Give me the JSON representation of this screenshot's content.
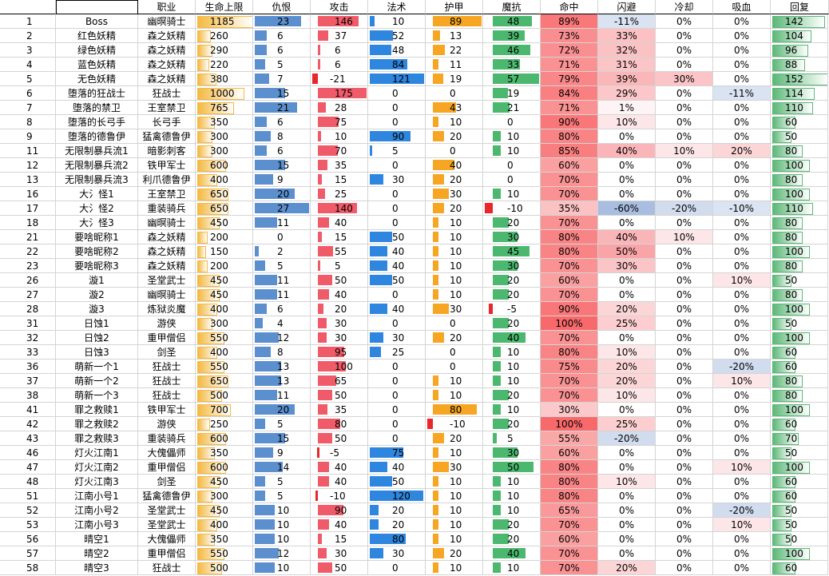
{
  "headers": {
    "job": "职业",
    "hp": "生命上限",
    "threat": "仇恨",
    "atk": "攻击",
    "mag": "法术",
    "armor": "护甲",
    "res": "魔抗",
    "hit": "命中",
    "dodge": "闪避",
    "cd": "冷却",
    "steal": "吸血",
    "regen": "回复"
  },
  "colors": {
    "hp": "#f4b942",
    "threat": "#5b8fce",
    "atk": "#f05b6a",
    "mag": "#2e86de",
    "armor": "#f6a623",
    "res": "#4cb86f",
    "regen": "#5cb878",
    "hit_hi": "#f8696b",
    "hit_lo": "#fde9ea",
    "pos_hi": "#f9a5a8",
    "neg": "#a8bde0"
  },
  "rows": [
    {
      "id": "1",
      "name": "Boss",
      "job": "幽暝骑士",
      "hp": "1185",
      "threat": "23",
      "atk": "146",
      "mag": "10",
      "armor": "89",
      "res": "48",
      "hit": "89%",
      "dodge": "-11%",
      "cd": "0%",
      "steal": "0%",
      "regen": "142"
    },
    {
      "id": "2",
      "name": "红色妖精",
      "job": "森之妖精",
      "hp": "260",
      "threat": "6",
      "atk": "37",
      "mag": "52",
      "armor": "13",
      "res": "39",
      "hit": "73%",
      "dodge": "33%",
      "cd": "0%",
      "steal": "0%",
      "regen": "104"
    },
    {
      "id": "3",
      "name": "绿色妖精",
      "job": "森之妖精",
      "hp": "290",
      "threat": "6",
      "atk": "6",
      "mag": "48",
      "armor": "22",
      "res": "46",
      "hit": "72%",
      "dodge": "32%",
      "cd": "0%",
      "steal": "0%",
      "regen": "96"
    },
    {
      "id": "4",
      "name": "蓝色妖精",
      "job": "森之妖精",
      "hp": "220",
      "threat": "5",
      "atk": "6",
      "mag": "84",
      "armor": "11",
      "res": "33",
      "hit": "71%",
      "dodge": "31%",
      "cd": "0%",
      "steal": "0%",
      "regen": "88"
    },
    {
      "id": "5",
      "name": "无色妖精",
      "job": "森之妖精",
      "hp": "380",
      "threat": "7",
      "atk": "-21",
      "mag": "121",
      "armor": "19",
      "res": "57",
      "hit": "79%",
      "dodge": "39%",
      "cd": "30%",
      "steal": "0%",
      "regen": "152"
    },
    {
      "id": "6",
      "name": "堕落的狂战士",
      "job": "狂战士",
      "hp": "1000",
      "threat": "15",
      "atk": "175",
      "mag": "0",
      "armor": "0",
      "res": "19",
      "hit": "84%",
      "dodge": "29%",
      "cd": "0%",
      "steal": "-11%",
      "regen": "114"
    },
    {
      "id": "7",
      "name": "堕落的禁卫",
      "job": "王室禁卫",
      "hp": "765",
      "threat": "21",
      "atk": "28",
      "mag": "0",
      "armor": "43",
      "res": "21",
      "hit": "71%",
      "dodge": "1%",
      "cd": "0%",
      "steal": "0%",
      "regen": "110"
    },
    {
      "id": "8",
      "name": "堕落的长弓手",
      "job": "长弓手",
      "hp": "350",
      "threat": "6",
      "atk": "75",
      "mag": "0",
      "armor": "10",
      "res": "0",
      "hit": "90%",
      "dodge": "10%",
      "cd": "0%",
      "steal": "0%",
      "regen": "60"
    },
    {
      "id": "9",
      "name": "堕落的德鲁伊",
      "job": "猛禽德鲁伊",
      "hp": "300",
      "threat": "8",
      "atk": "10",
      "mag": "90",
      "armor": "20",
      "res": "10",
      "hit": "80%",
      "dodge": "0%",
      "cd": "0%",
      "steal": "0%",
      "regen": "50"
    },
    {
      "id": "11",
      "name": "无限制暴兵流1",
      "job": "暗影刺客",
      "hp": "300",
      "threat": "6",
      "atk": "70",
      "mag": "5",
      "armor": "0",
      "res": "10",
      "hit": "85%",
      "dodge": "40%",
      "cd": "10%",
      "steal": "20%",
      "regen": "80"
    },
    {
      "id": "12",
      "name": "无限制暴兵流2",
      "job": "铁甲军士",
      "hp": "600",
      "threat": "15",
      "atk": "35",
      "mag": "0",
      "armor": "40",
      "res": "0",
      "hit": "60%",
      "dodge": "0%",
      "cd": "0%",
      "steal": "0%",
      "regen": "100"
    },
    {
      "id": "13",
      "name": "无限制暴兵流3",
      "job": "利爪德鲁伊",
      "hp": "400",
      "threat": "9",
      "atk": "15",
      "mag": "30",
      "armor": "20",
      "res": "0",
      "hit": "70%",
      "dodge": "0%",
      "cd": "0%",
      "steal": "0%",
      "regen": "80"
    },
    {
      "id": "16",
      "name": "大氵怪1",
      "job": "王室禁卫",
      "hp": "650",
      "threat": "20",
      "atk": "25",
      "mag": "0",
      "armor": "30",
      "res": "10",
      "hit": "70%",
      "dodge": "0%",
      "cd": "0%",
      "steal": "0%",
      "regen": "100"
    },
    {
      "id": "17",
      "name": "大氵怪2",
      "job": "重装骑兵",
      "hp": "650",
      "threat": "27",
      "atk": "140",
      "mag": "0",
      "armor": "20",
      "res": "-10",
      "hit": "35%",
      "dodge": "-60%",
      "cd": "-20%",
      "steal": "-10%",
      "regen": "110"
    },
    {
      "id": "18",
      "name": "大氵怪3",
      "job": "幽暝骑士",
      "hp": "450",
      "threat": "11",
      "atk": "40",
      "mag": "0",
      "armor": "10",
      "res": "20",
      "hit": "70%",
      "dodge": "0%",
      "cd": "0%",
      "steal": "0%",
      "regen": "80"
    },
    {
      "id": "21",
      "name": "要啥昵称1",
      "job": "森之妖精",
      "hp": "200",
      "threat": "0",
      "atk": "15",
      "mag": "50",
      "armor": "10",
      "res": "30",
      "hit": "80%",
      "dodge": "40%",
      "cd": "10%",
      "steal": "0%",
      "regen": "80"
    },
    {
      "id": "22",
      "name": "要啥昵称2",
      "job": "森之妖精",
      "hp": "150",
      "threat": "2",
      "atk": "55",
      "mag": "40",
      "armor": "10",
      "res": "45",
      "hit": "80%",
      "dodge": "50%",
      "cd": "0%",
      "steal": "0%",
      "regen": "100"
    },
    {
      "id": "23",
      "name": "要啥昵称3",
      "job": "森之妖精",
      "hp": "200",
      "threat": "5",
      "atk": "5",
      "mag": "40",
      "armor": "10",
      "res": "30",
      "hit": "70%",
      "dodge": "30%",
      "cd": "0%",
      "steal": "0%",
      "regen": "80"
    },
    {
      "id": "26",
      "name": "漩1",
      "job": "圣堂武士",
      "hp": "450",
      "threat": "11",
      "atk": "50",
      "mag": "50",
      "armor": "10",
      "res": "20",
      "hit": "60%",
      "dodge": "0%",
      "cd": "0%",
      "steal": "10%",
      "regen": "50"
    },
    {
      "id": "27",
      "name": "漩2",
      "job": "幽暝骑士",
      "hp": "450",
      "threat": "11",
      "atk": "40",
      "mag": "0",
      "armor": "10",
      "res": "20",
      "hit": "70%",
      "dodge": "0%",
      "cd": "0%",
      "steal": "0%",
      "regen": "80"
    },
    {
      "id": "28",
      "name": "漩3",
      "job": "炼狱炎魔",
      "hp": "400",
      "threat": "6",
      "atk": "20",
      "mag": "40",
      "armor": "30",
      "res": "-5",
      "hit": "90%",
      "dodge": "20%",
      "cd": "0%",
      "steal": "0%",
      "regen": "100"
    },
    {
      "id": "31",
      "name": "日蚀1",
      "job": "游侠",
      "hp": "300",
      "threat": "4",
      "atk": "30",
      "mag": "0",
      "armor": "0",
      "res": "20",
      "hit": "100%",
      "dodge": "25%",
      "cd": "0%",
      "steal": "0%",
      "regen": "50"
    },
    {
      "id": "32",
      "name": "日蚀2",
      "job": "重甲僧侣",
      "hp": "550",
      "threat": "12",
      "atk": "30",
      "mag": "30",
      "armor": "20",
      "res": "40",
      "hit": "70%",
      "dodge": "0%",
      "cd": "0%",
      "steal": "0%",
      "regen": "100"
    },
    {
      "id": "33",
      "name": "日蚀3",
      "job": "剑圣",
      "hp": "400",
      "threat": "8",
      "atk": "95",
      "mag": "25",
      "armor": "0",
      "res": "10",
      "hit": "80%",
      "dodge": "10%",
      "cd": "0%",
      "steal": "0%",
      "regen": "60"
    },
    {
      "id": "36",
      "name": "萌新一个1",
      "job": "狂战士",
      "hp": "550",
      "threat": "13",
      "atk": "100",
      "mag": "0",
      "armor": "0",
      "res": "10",
      "hit": "75%",
      "dodge": "20%",
      "cd": "0%",
      "steal": "-20%",
      "regen": "60"
    },
    {
      "id": "37",
      "name": "萌新一个2",
      "job": "狂战士",
      "hp": "650",
      "threat": "13",
      "atk": "65",
      "mag": "0",
      "armor": "10",
      "res": "10",
      "hit": "70%",
      "dodge": "20%",
      "cd": "0%",
      "steal": "10%",
      "regen": "80"
    },
    {
      "id": "38",
      "name": "萌新一个3",
      "job": "狂战士",
      "hp": "500",
      "threat": "11",
      "atk": "50",
      "mag": "0",
      "armor": "10",
      "res": "20",
      "hit": "70%",
      "dodge": "10%",
      "cd": "0%",
      "steal": "0%",
      "regen": "80"
    },
    {
      "id": "41",
      "name": "罪之救赎1",
      "job": "铁甲军士",
      "hp": "700",
      "threat": "20",
      "atk": "35",
      "mag": "0",
      "armor": "80",
      "res": "10",
      "hit": "30%",
      "dodge": "0%",
      "cd": "0%",
      "steal": "0%",
      "regen": "100"
    },
    {
      "id": "42",
      "name": "罪之救赎2",
      "job": "游侠",
      "hp": "250",
      "threat": "5",
      "atk": "80",
      "mag": "0",
      "armor": "-10",
      "res": "20",
      "hit": "100%",
      "dodge": "25%",
      "cd": "0%",
      "steal": "0%",
      "regen": "60"
    },
    {
      "id": "43",
      "name": "罪之救赎3",
      "job": "重装骑兵",
      "hp": "600",
      "threat": "15",
      "atk": "50",
      "mag": "0",
      "armor": "20",
      "res": "5",
      "hit": "55%",
      "dodge": "-20%",
      "cd": "0%",
      "steal": "0%",
      "regen": "70"
    },
    {
      "id": "46",
      "name": "灯火江南1",
      "job": "大傀儡师",
      "hp": "350",
      "threat": "9",
      "atk": "-5",
      "mag": "75",
      "armor": "10",
      "res": "30",
      "hit": "60%",
      "dodge": "0%",
      "cd": "0%",
      "steal": "0%",
      "regen": "50"
    },
    {
      "id": "47",
      "name": "灯火江南2",
      "job": "重甲僧侣",
      "hp": "600",
      "threat": "14",
      "atk": "40",
      "mag": "40",
      "armor": "30",
      "res": "50",
      "hit": "80%",
      "dodge": "0%",
      "cd": "0%",
      "steal": "10%",
      "regen": "100"
    },
    {
      "id": "48",
      "name": "灯火江南3",
      "job": "剑圣",
      "hp": "450",
      "threat": "5",
      "atk": "40",
      "mag": "50",
      "armor": "10",
      "res": "10",
      "hit": "80%",
      "dodge": "10%",
      "cd": "0%",
      "steal": "0%",
      "regen": "60"
    },
    {
      "id": "51",
      "name": "江南小号1",
      "job": "猛禽德鲁伊",
      "hp": "300",
      "threat": "5",
      "atk": "-10",
      "mag": "120",
      "armor": "10",
      "res": "10",
      "hit": "80%",
      "dodge": "0%",
      "cd": "0%",
      "steal": "0%",
      "regen": "60"
    },
    {
      "id": "52",
      "name": "江南小号2",
      "job": "圣堂武士",
      "hp": "450",
      "threat": "10",
      "atk": "90",
      "mag": "20",
      "armor": "10",
      "res": "10",
      "hit": "65%",
      "dodge": "0%",
      "cd": "0%",
      "steal": "-20%",
      "regen": "50"
    },
    {
      "id": "53",
      "name": "江南小号3",
      "job": "圣堂武士",
      "hp": "400",
      "threat": "10",
      "atk": "40",
      "mag": "20",
      "armor": "10",
      "res": "20",
      "hit": "70%",
      "dodge": "0%",
      "cd": "0%",
      "steal": "10%",
      "regen": "50"
    },
    {
      "id": "56",
      "name": "晴空1",
      "job": "大傀儡师",
      "hp": "350",
      "threat": "10",
      "atk": "15",
      "mag": "80",
      "armor": "10",
      "res": "20",
      "hit": "60%",
      "dodge": "0%",
      "cd": "0%",
      "steal": "0%",
      "regen": "50"
    },
    {
      "id": "57",
      "name": "晴空2",
      "job": "重甲僧侣",
      "hp": "550",
      "threat": "12",
      "atk": "30",
      "mag": "30",
      "armor": "20",
      "res": "40",
      "hit": "70%",
      "dodge": "0%",
      "cd": "0%",
      "steal": "0%",
      "regen": "100"
    },
    {
      "id": "58",
      "name": "晴空3",
      "job": "狂战士",
      "hp": "500",
      "threat": "10",
      "atk": "50",
      "mag": "0",
      "armor": "10",
      "res": "10",
      "hit": "70%",
      "dodge": "20%",
      "cd": "0%",
      "steal": "0%",
      "regen": "60"
    }
  ]
}
